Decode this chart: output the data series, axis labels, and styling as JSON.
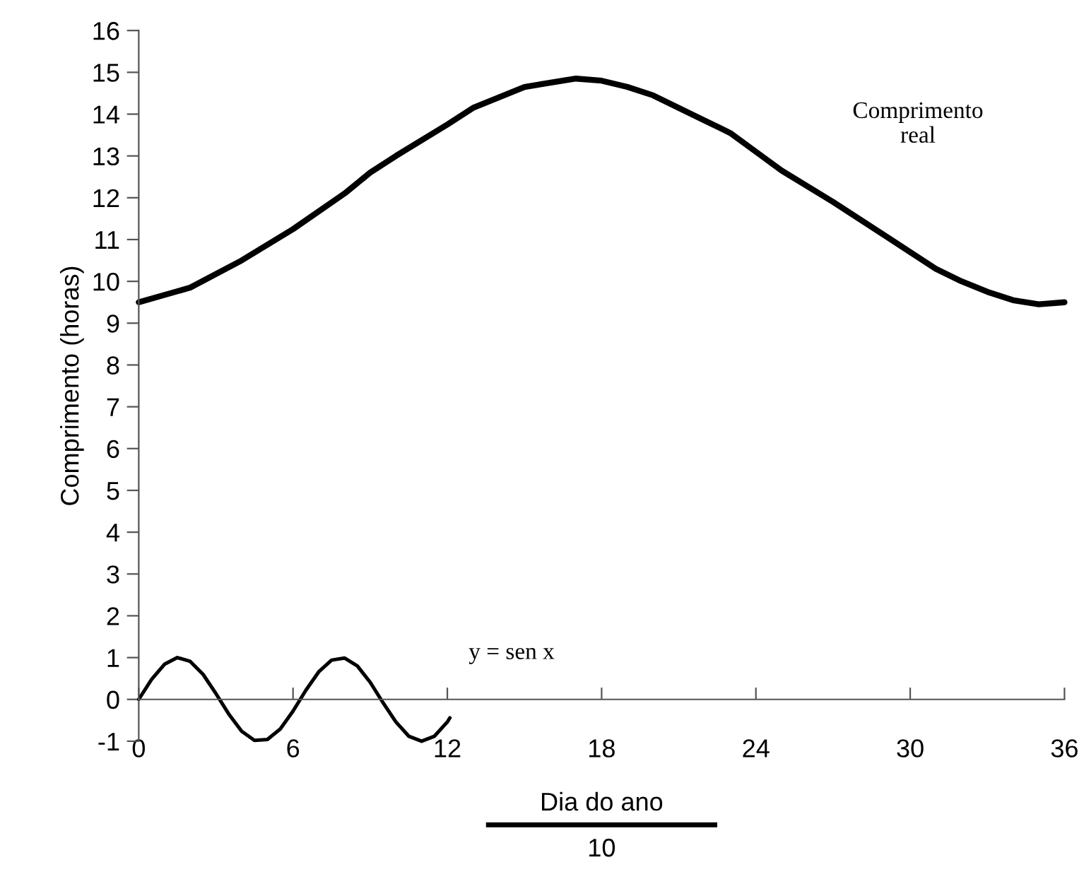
{
  "chart_data": {
    "type": "line",
    "ylabel": "Comprimento (horas)",
    "xlabel": "Dia do ano",
    "annotations": [
      "10"
    ],
    "xlim": [
      0,
      36
    ],
    "xticks": [
      0,
      6,
      12,
      18,
      24,
      30,
      36
    ],
    "ylim": [
      -1,
      16
    ],
    "yticks": [
      -1,
      0,
      1,
      2,
      3,
      4,
      5,
      6,
      7,
      8,
      9,
      10,
      11,
      12,
      13,
      14,
      15,
      16
    ],
    "grid": false,
    "legend": false,
    "marker": "none",
    "line_style": "solid",
    "series": [
      {
        "name": "Comprimento real",
        "color": "#000000",
        "x": [
          0,
          2,
          4,
          6,
          8,
          9,
          10,
          12,
          13,
          15,
          17,
          18,
          19,
          20,
          21,
          22,
          23,
          24,
          25,
          27,
          29,
          31,
          32,
          33,
          34,
          35,
          36
        ],
        "values": [
          9.5,
          9.85,
          10.5,
          11.25,
          12.1,
          12.6,
          13.0,
          13.75,
          14.15,
          14.65,
          14.85,
          14.8,
          14.65,
          14.45,
          14.15,
          13.85,
          13.55,
          13.1,
          12.65,
          11.9,
          11.1,
          10.3,
          10.0,
          9.75,
          9.55,
          9.45,
          9.5
        ]
      },
      {
        "name": "y = sen x",
        "color": "#000000",
        "x": [
          0,
          0.5,
          1,
          1.5,
          2,
          2.5,
          3,
          3.5,
          4,
          4.5,
          5,
          5.5,
          6,
          6.5,
          7,
          7.5,
          8,
          8.5,
          9,
          9.5,
          10,
          10.5,
          11,
          11.5,
          12,
          12.1
        ],
        "values": [
          0,
          0.48,
          0.84,
          1.0,
          0.91,
          0.6,
          0.14,
          -0.35,
          -0.76,
          -0.98,
          -0.96,
          -0.71,
          -0.28,
          0.22,
          0.66,
          0.94,
          0.99,
          0.8,
          0.41,
          -0.08,
          -0.54,
          -0.88,
          -1.0,
          -0.88,
          -0.54,
          -0.44
        ]
      }
    ]
  }
}
